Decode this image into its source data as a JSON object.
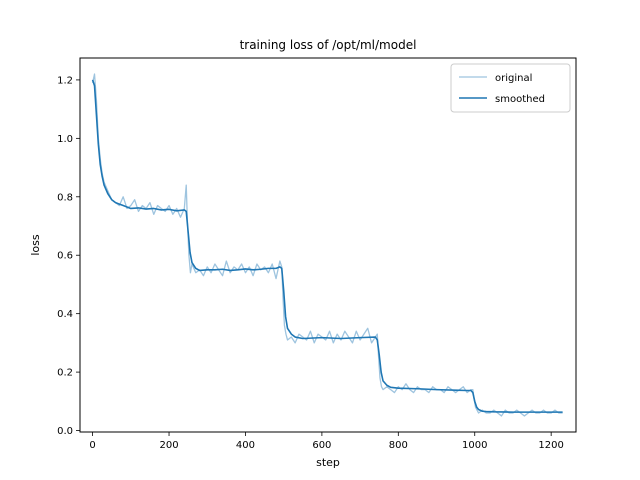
{
  "chart_data": {
    "type": "line",
    "title": "training loss of /opt/ml/model",
    "xlabel": "step",
    "ylabel": "loss",
    "xlim": [
      -33,
      1265
    ],
    "ylim": [
      -0.005,
      1.275
    ],
    "xticks": [
      0,
      200,
      400,
      600,
      800,
      1000,
      1200
    ],
    "yticks": [
      0.0,
      0.2,
      0.4,
      0.6,
      0.8,
      1.0,
      1.2
    ],
    "grid": false,
    "legend": {
      "placement": "top-right",
      "entries": [
        "original",
        "smoothed"
      ]
    },
    "series": [
      {
        "name": "original",
        "color": "#9ec4df",
        "x": [
          0,
          5,
          10,
          15,
          20,
          25,
          30,
          40,
          50,
          60,
          70,
          80,
          90,
          100,
          110,
          120,
          130,
          140,
          150,
          160,
          170,
          180,
          190,
          200,
          210,
          220,
          230,
          240,
          245,
          248,
          252,
          256,
          260,
          270,
          280,
          290,
          300,
          310,
          320,
          330,
          340,
          350,
          360,
          370,
          380,
          390,
          400,
          410,
          420,
          430,
          440,
          450,
          460,
          470,
          480,
          490,
          495,
          498,
          502,
          506,
          510,
          520,
          530,
          540,
          550,
          560,
          570,
          580,
          590,
          600,
          610,
          620,
          630,
          640,
          650,
          660,
          670,
          680,
          690,
          700,
          710,
          720,
          730,
          740,
          745,
          748,
          752,
          756,
          760,
          770,
          780,
          790,
          800,
          810,
          820,
          830,
          840,
          850,
          860,
          870,
          880,
          890,
          900,
          910,
          920,
          930,
          940,
          950,
          960,
          970,
          980,
          990,
          995,
          998,
          1002,
          1006,
          1010,
          1020,
          1030,
          1040,
          1050,
          1060,
          1070,
          1080,
          1090,
          1100,
          1110,
          1120,
          1130,
          1140,
          1150,
          1160,
          1170,
          1180,
          1190,
          1200,
          1210,
          1220,
          1230
        ],
        "y": [
          1.19,
          1.22,
          1.13,
          1.0,
          0.93,
          0.88,
          0.85,
          0.82,
          0.79,
          0.78,
          0.77,
          0.8,
          0.76,
          0.77,
          0.79,
          0.75,
          0.77,
          0.76,
          0.78,
          0.74,
          0.77,
          0.76,
          0.75,
          0.77,
          0.74,
          0.76,
          0.73,
          0.76,
          0.84,
          0.72,
          0.6,
          0.54,
          0.57,
          0.54,
          0.55,
          0.53,
          0.56,
          0.54,
          0.57,
          0.55,
          0.53,
          0.58,
          0.54,
          0.56,
          0.55,
          0.57,
          0.54,
          0.56,
          0.53,
          0.57,
          0.55,
          0.56,
          0.54,
          0.57,
          0.52,
          0.58,
          0.56,
          0.46,
          0.36,
          0.33,
          0.31,
          0.32,
          0.3,
          0.33,
          0.32,
          0.31,
          0.34,
          0.3,
          0.33,
          0.32,
          0.31,
          0.34,
          0.3,
          0.33,
          0.31,
          0.34,
          0.32,
          0.3,
          0.34,
          0.31,
          0.33,
          0.35,
          0.3,
          0.32,
          0.33,
          0.26,
          0.18,
          0.15,
          0.14,
          0.15,
          0.14,
          0.13,
          0.15,
          0.14,
          0.16,
          0.14,
          0.13,
          0.15,
          0.14,
          0.14,
          0.13,
          0.15,
          0.14,
          0.14,
          0.13,
          0.15,
          0.14,
          0.13,
          0.14,
          0.15,
          0.13,
          0.14,
          0.14,
          0.11,
          0.08,
          0.07,
          0.06,
          0.07,
          0.06,
          0.06,
          0.07,
          0.06,
          0.05,
          0.07,
          0.06,
          0.06,
          0.07,
          0.06,
          0.05,
          0.06,
          0.07,
          0.06,
          0.06,
          0.07,
          0.06,
          0.06,
          0.07,
          0.06,
          0.06
        ]
      },
      {
        "name": "smoothed",
        "color": "#1f77b4",
        "x": [
          0,
          5,
          10,
          15,
          20,
          25,
          30,
          40,
          50,
          60,
          70,
          80,
          90,
          100,
          120,
          140,
          160,
          180,
          200,
          220,
          240,
          245,
          250,
          255,
          260,
          270,
          280,
          300,
          320,
          340,
          360,
          380,
          400,
          420,
          440,
          460,
          480,
          490,
          495,
          500,
          505,
          510,
          520,
          530,
          550,
          600,
          650,
          700,
          740,
          745,
          750,
          755,
          760,
          770,
          780,
          800,
          850,
          900,
          950,
          980,
          990,
          995,
          1000,
          1005,
          1010,
          1020,
          1030,
          1050,
          1100,
          1150,
          1200,
          1230
        ],
        "y": [
          1.2,
          1.18,
          1.08,
          0.98,
          0.91,
          0.87,
          0.84,
          0.81,
          0.79,
          0.78,
          0.775,
          0.77,
          0.765,
          0.76,
          0.762,
          0.758,
          0.76,
          0.755,
          0.757,
          0.752,
          0.755,
          0.75,
          0.68,
          0.61,
          0.575,
          0.555,
          0.548,
          0.55,
          0.55,
          0.552,
          0.548,
          0.55,
          0.553,
          0.55,
          0.552,
          0.555,
          0.555,
          0.56,
          0.555,
          0.48,
          0.39,
          0.35,
          0.33,
          0.32,
          0.315,
          0.318,
          0.315,
          0.318,
          0.32,
          0.31,
          0.26,
          0.2,
          0.17,
          0.155,
          0.148,
          0.145,
          0.143,
          0.14,
          0.138,
          0.137,
          0.137,
          0.13,
          0.1,
          0.08,
          0.072,
          0.066,
          0.065,
          0.064,
          0.063,
          0.063,
          0.063,
          0.063
        ]
      }
    ]
  }
}
